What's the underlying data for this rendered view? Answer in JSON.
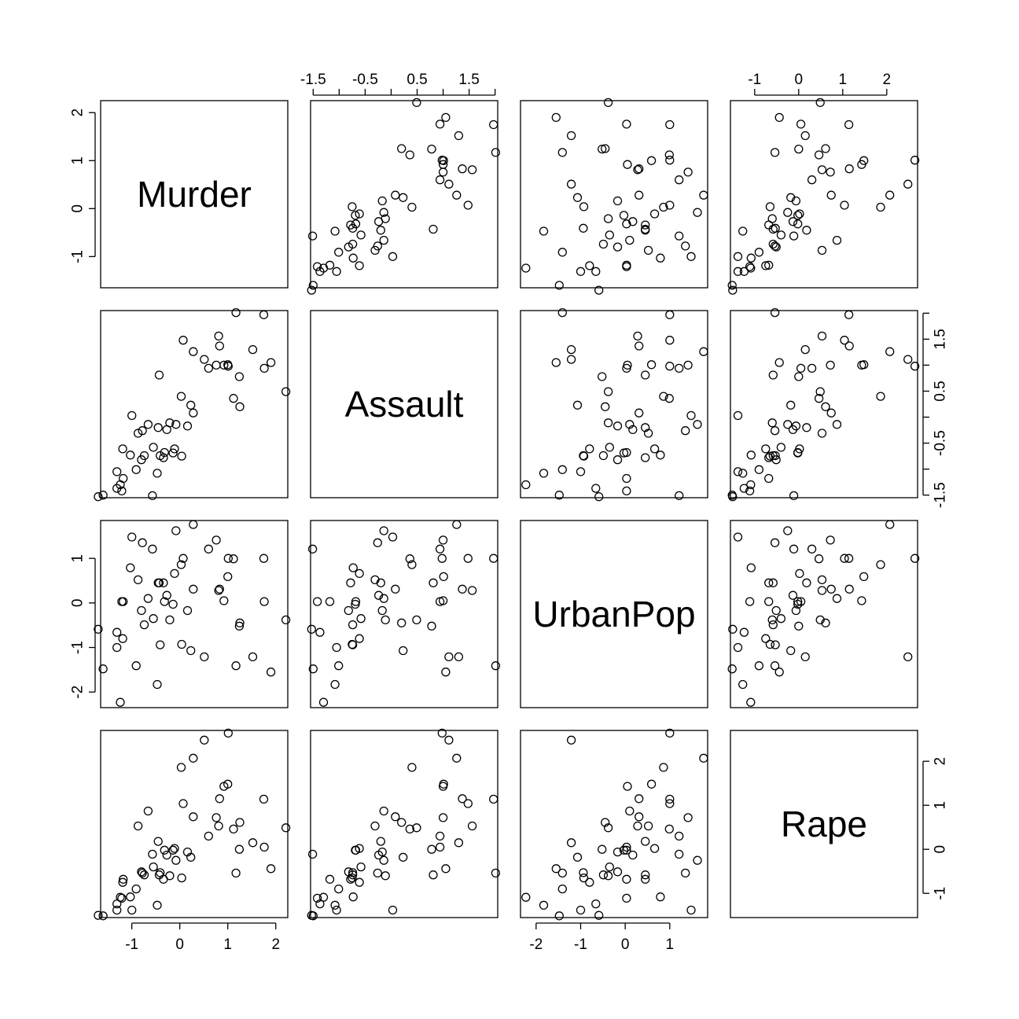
{
  "chart_data": {
    "type": "scatter",
    "variables": [
      "Murder",
      "Assault",
      "UrbanPop",
      "Rape"
    ],
    "ranges": [
      [
        -1.65,
        2.25
      ],
      [
        -1.55,
        2.05
      ],
      [
        -2.35,
        1.85
      ],
      [
        -1.55,
        2.7
      ]
    ],
    "tick_values": [
      [
        -1,
        0,
        1,
        2
      ],
      [
        -1.5,
        -1,
        -0.5,
        0,
        0.5,
        1,
        1.5,
        2
      ],
      [
        -2,
        -1,
        0,
        1
      ],
      [
        -1,
        0,
        1,
        2
      ]
    ],
    "tick_labels": [
      [
        "-1",
        "0",
        "1",
        "2"
      ],
      [
        "-1.5",
        "",
        "-0.5",
        "",
        "0.5",
        "",
        "1.5",
        ""
      ],
      [
        "-2",
        "-1",
        "0",
        "1"
      ],
      [
        "-1",
        "0",
        "1",
        "2"
      ]
    ],
    "observations": [
      [
        1.24,
        0.78,
        -0.52,
        -0.0
      ],
      [
        0.51,
        1.11,
        -1.21,
        2.48
      ],
      [
        0.07,
        1.48,
        1.0,
        1.04
      ],
      [
        0.23,
        0.23,
        -1.07,
        -0.18
      ],
      [
        0.28,
        1.26,
        1.76,
        2.07
      ],
      [
        0.03,
        0.4,
        0.86,
        1.86
      ],
      [
        -1.03,
        -0.73,
        0.79,
        -1.08
      ],
      [
        -0.43,
        0.81,
        0.45,
        -0.58
      ],
      [
        1.75,
        1.97,
        1.0,
        1.14
      ],
      [
        2.21,
        0.49,
        -0.38,
        0.49
      ],
      [
        -0.57,
        -1.51,
        1.21,
        -0.11
      ],
      [
        -1.19,
        -0.61,
        -0.8,
        -0.75
      ],
      [
        0.6,
        0.94,
        1.21,
        0.3
      ],
      [
        -0.14,
        -0.69,
        -0.03,
        -0.02
      ],
      [
        -1.7,
        -1.53,
        -0.59,
        -1.5
      ],
      [
        -0.32,
        -0.68,
        0.03,
        -0.02
      ],
      [
        0.04,
        -0.75,
        -0.93,
        -0.65
      ],
      [
        1.76,
        0.94,
        0.03,
        0.05
      ],
      [
        -1.31,
        -1.05,
        -1.0,
        -1.38
      ],
      [
        0.81,
        1.56,
        0.28,
        0.53
      ],
      [
        -0.78,
        -0.26,
        1.35,
        -0.54
      ],
      [
        1.0,
        1.01,
        0.59,
        1.48
      ],
      [
        -1.18,
        -1.18,
        0.03,
        -0.68
      ],
      [
        1.9,
        1.05,
        -1.55,
        -0.44
      ],
      [
        0.28,
        0.08,
        0.31,
        0.74
      ],
      [
        -0.41,
        -0.74,
        -0.94,
        -0.53
      ],
      [
        -0.8,
        -0.82,
        -0.17,
        -0.51
      ],
      [
        1.01,
        0.98,
        1.0,
        2.64
      ],
      [
        -1.31,
        -1.37,
        -0.66,
        -1.24
      ],
      [
        -0.08,
        -0.14,
        1.62,
        -0.25
      ],
      [
        0.83,
        1.37,
        0.31,
        1.15
      ],
      [
        0.76,
        1.0,
        1.41,
        0.72
      ],
      [
        1.17,
        2.01,
        -1.41,
        -0.54
      ],
      [
        -1.6,
        -1.5,
        -1.48,
        -1.51
      ],
      [
        -0.11,
        -0.61,
        0.66,
        0.02
      ],
      [
        -0.27,
        -0.24,
        0.17,
        -0.13
      ],
      [
        -0.66,
        -0.14,
        0.1,
        0.87
      ],
      [
        -0.34,
        -0.78,
        0.45,
        -0.68
      ],
      [
        -1.0,
        0.03,
        1.48,
        -1.38
      ],
      [
        1.52,
        1.3,
        -1.21,
        0.15
      ],
      [
        -0.91,
        -1.01,
        -1.41,
        -0.9
      ],
      [
        1.25,
        0.2,
        -0.45,
        0.61
      ],
      [
        1.12,
        0.36,
        0.99,
        0.46
      ],
      [
        -0.45,
        -0.2,
        0.45,
        0.18
      ],
      [
        -1.24,
        -1.3,
        -2.23,
        -1.09
      ],
      [
        0.16,
        -0.17,
        -0.17,
        -0.06
      ],
      [
        -0.87,
        -0.31,
        0.52,
        0.53
      ],
      [
        -0.47,
        -1.08,
        -1.83,
        -1.27
      ],
      [
        -1.21,
        -1.42,
        0.03,
        -1.11
      ],
      [
        -0.21,
        -0.11,
        -0.38,
        -0.6
      ],
      [
        0.92,
        1.0,
        0.05,
        1.43
      ],
      [
        -0.55,
        -0.58,
        -0.35,
        -0.4
      ],
      [
        -0.74,
        -0.74,
        -0.49,
        -0.58
      ]
    ],
    "grid": false,
    "legend": "none"
  }
}
